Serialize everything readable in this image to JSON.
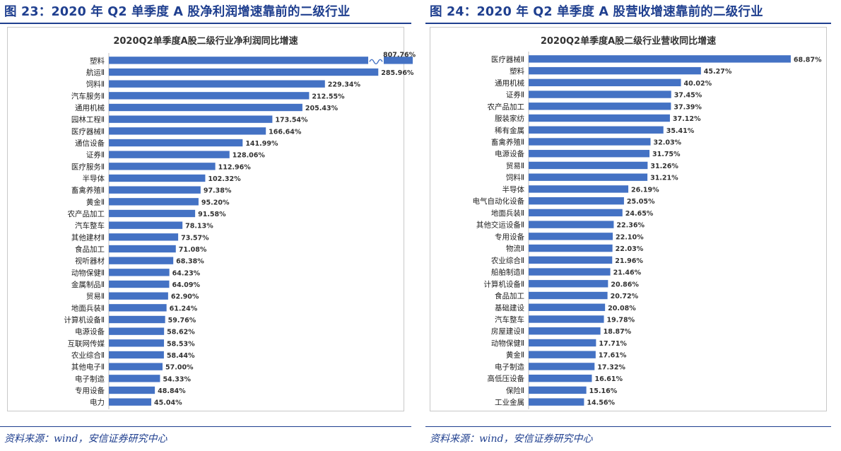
{
  "figures": [
    {
      "fig_title": "图 23：2020 年 Q2 单季度 A 股净利润增速靠前的二级行业",
      "source": "资料来源：wind，安信证券研究中心"
    },
    {
      "fig_title": "图 24：2020 年 Q2 单季度 A 股营收增速靠前的二级行业",
      "source": "资料来源：wind，安信证券研究中心"
    }
  ],
  "colors": {
    "bar": "#4472c4",
    "title": "#1f3f8f",
    "axis": "#bfbfbf"
  },
  "chart_data": [
    {
      "type": "bar",
      "orientation": "horizontal",
      "title": "2020Q2单季度A股二级行业净利润同比增速",
      "xlabel": "",
      "ylabel": "",
      "axis_break": true,
      "categories": [
        "塑料",
        "航运Ⅱ",
        "饲料Ⅱ",
        "汽车服务Ⅱ",
        "通用机械",
        "园林工程Ⅱ",
        "医疗器械Ⅱ",
        "通信设备",
        "证券Ⅱ",
        "医疗服务Ⅱ",
        "半导体",
        "畜禽养殖Ⅱ",
        "黄金Ⅱ",
        "农产品加工",
        "汽车整车",
        "其他建材Ⅱ",
        "食品加工",
        "视听器材",
        "动物保健Ⅱ",
        "金属制品Ⅱ",
        "贸易Ⅱ",
        "地面兵装Ⅱ",
        "计算机设备Ⅱ",
        "电源设备",
        "互联网传媒",
        "农业综合Ⅱ",
        "其他电子Ⅱ",
        "电子制造",
        "专用设备",
        "电力"
      ],
      "values": [
        807.76,
        285.96,
        229.34,
        212.55,
        205.43,
        173.54,
        166.64,
        141.99,
        128.06,
        112.96,
        102.32,
        97.38,
        95.2,
        91.58,
        78.13,
        73.57,
        71.08,
        68.38,
        64.23,
        64.09,
        62.9,
        61.24,
        59.76,
        58.62,
        58.53,
        58.44,
        57.0,
        54.33,
        48.84,
        45.04
      ],
      "value_labels": [
        "807.76%",
        "285.96%",
        "229.34%",
        "212.55%",
        "205.43%",
        "173.54%",
        "166.64%",
        "141.99%",
        "128.06%",
        "112.96%",
        "102.32%",
        "97.38%",
        "95.20%",
        "91.58%",
        "78.13%",
        "73.57%",
        "71.08%",
        "68.38%",
        "64.23%",
        "64.09%",
        "62.90%",
        "61.24%",
        "59.76%",
        "58.62%",
        "58.53%",
        "58.44%",
        "57.00%",
        "54.33%",
        "48.84%",
        "45.04%"
      ]
    },
    {
      "type": "bar",
      "orientation": "horizontal",
      "title": "2020Q2单季度A股二级行业营收同比增速",
      "xlabel": "",
      "ylabel": "",
      "categories": [
        "医疗器械Ⅱ",
        "塑料",
        "通用机械",
        "证券Ⅱ",
        "农产品加工",
        "服装家纺",
        "稀有金属",
        "畜禽养殖Ⅱ",
        "电源设备",
        "贸易Ⅱ",
        "饲料Ⅱ",
        "半导体",
        "电气自动化设备",
        "地面兵装Ⅱ",
        "其他交运设备Ⅱ",
        "专用设备",
        "物流Ⅱ",
        "农业综合Ⅱ",
        "船舶制造Ⅱ",
        "计算机设备Ⅱ",
        "食品加工",
        "基础建设",
        "汽车整车",
        "房屋建设Ⅱ",
        "动物保健Ⅱ",
        "黄金Ⅱ",
        "电子制造",
        "高低压设备",
        "保险Ⅱ",
        "工业金属"
      ],
      "values": [
        68.87,
        45.27,
        40.02,
        37.45,
        37.39,
        37.12,
        35.41,
        32.03,
        31.75,
        31.26,
        31.21,
        26.19,
        25.05,
        24.65,
        22.36,
        22.1,
        22.03,
        21.96,
        21.46,
        20.86,
        20.72,
        20.08,
        19.78,
        18.87,
        17.71,
        17.61,
        17.32,
        16.61,
        15.16,
        14.56
      ],
      "value_labels": [
        "68.87%",
        "45.27%",
        "40.02%",
        "37.45%",
        "37.39%",
        "37.12%",
        "35.41%",
        "32.03%",
        "31.75%",
        "31.26%",
        "31.21%",
        "26.19%",
        "25.05%",
        "24.65%",
        "22.36%",
        "22.10%",
        "22.03%",
        "21.96%",
        "21.46%",
        "20.86%",
        "20.72%",
        "20.08%",
        "19.78%",
        "18.87%",
        "17.71%",
        "17.61%",
        "17.32%",
        "16.61%",
        "15.16%",
        "14.56%"
      ]
    }
  ]
}
